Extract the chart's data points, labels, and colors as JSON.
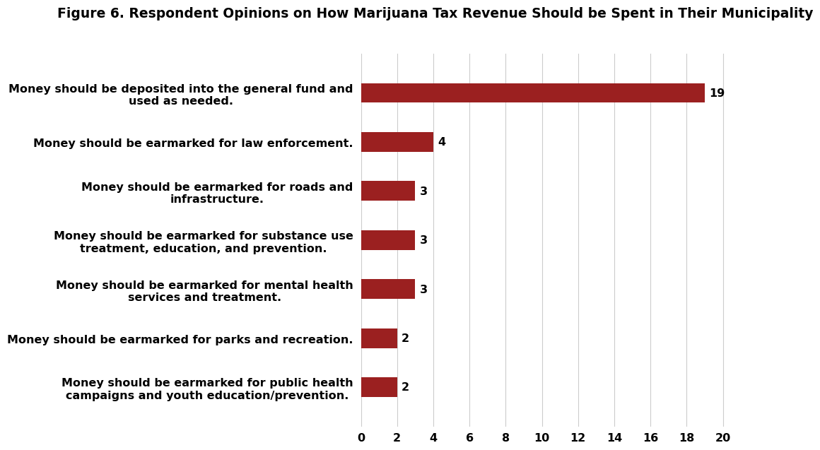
{
  "title": "Figure 6. Respondent Opinions on How Marijuana Tax Revenue Should be Spent in Their Municipality",
  "categories": [
    "Money should be earmarked for public health\ncampaigns and youth education/prevention.",
    "Money should be earmarked for parks and recreation.",
    "Money should be earmarked for mental health\nservices and treatment.",
    "Money should be earmarked for substance use\ntreatment, education, and prevention.",
    "Money should be earmarked for roads and\ninfrastructure.",
    "Money should be earmarked for law enforcement.",
    "Money should be deposited into the general fund and\nused as needed."
  ],
  "values": [
    2,
    2,
    3,
    3,
    3,
    4,
    19
  ],
  "bar_color": "#9B2020",
  "background_color": "#ffffff",
  "xlim": [
    0,
    21
  ],
  "xticks": [
    0,
    2,
    4,
    6,
    8,
    10,
    12,
    14,
    16,
    18,
    20
  ],
  "title_fontsize": 13.5,
  "label_fontsize": 11.5,
  "tick_fontsize": 11.5,
  "value_label_fontsize": 11.5,
  "grid_color": "#cccccc"
}
